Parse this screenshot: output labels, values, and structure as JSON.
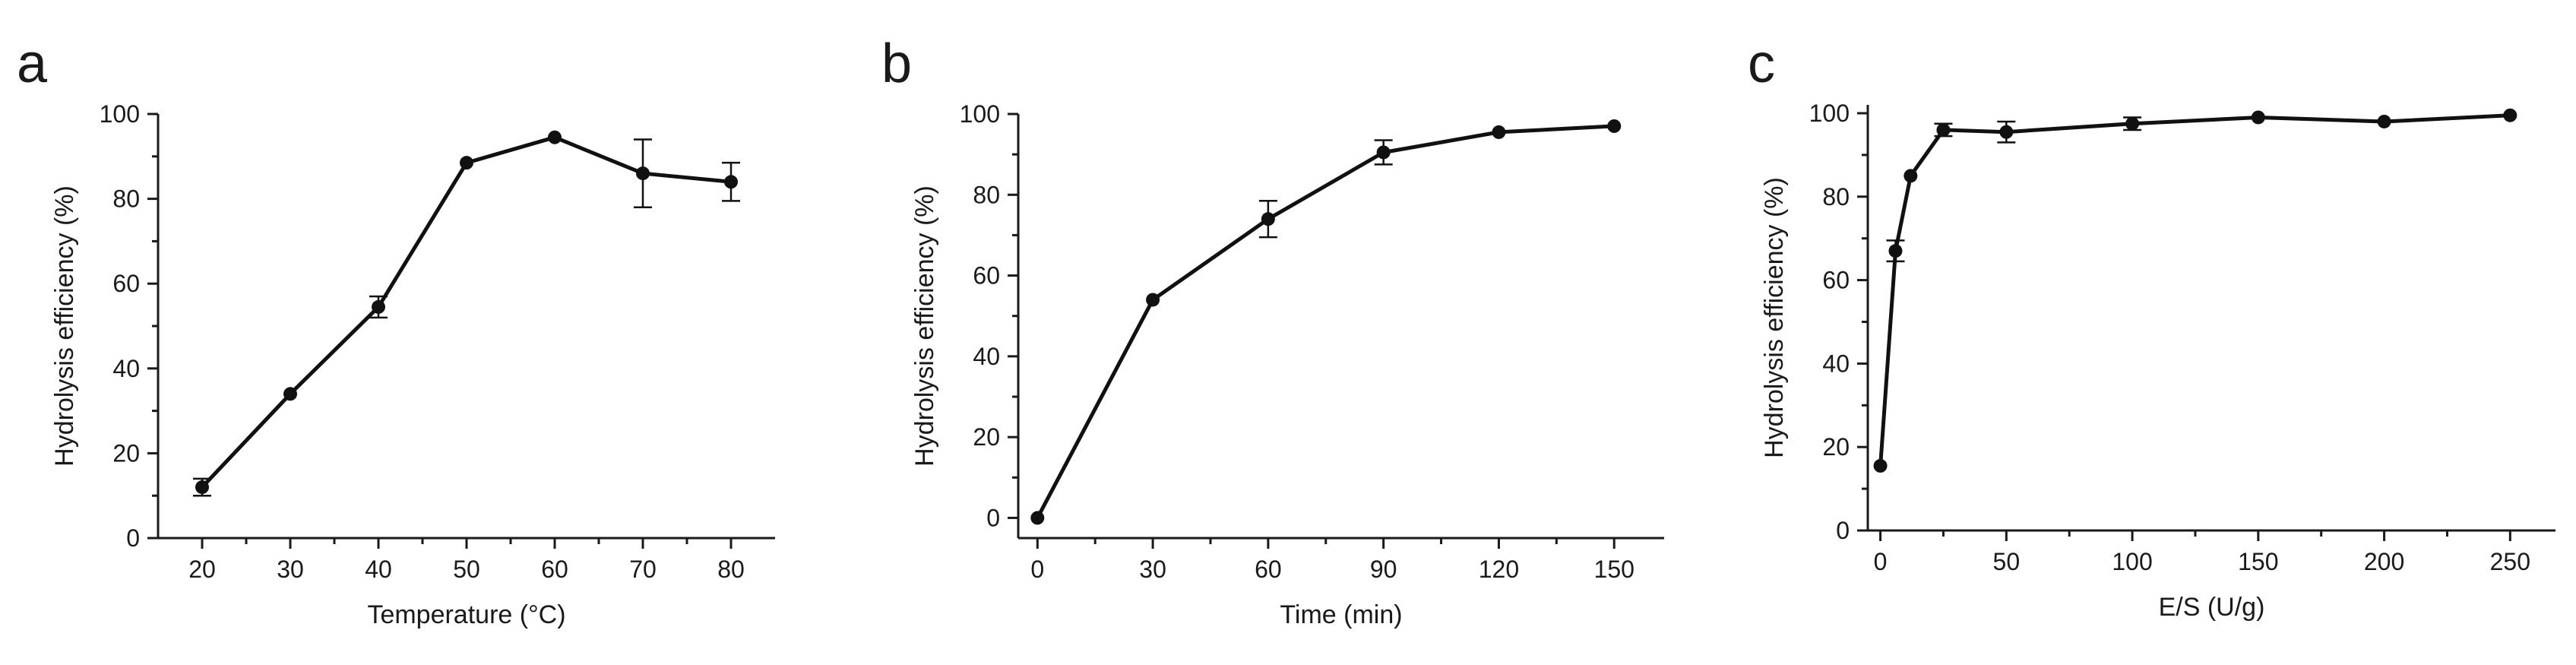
{
  "chart_data": [
    {
      "panel_label": "a",
      "type": "line",
      "xlabel": "Temperature (°C)",
      "ylabel": "Hydrolysis efficiency (%)",
      "xlim": [
        15,
        85
      ],
      "ylim": [
        0,
        100
      ],
      "xticks": [
        20,
        30,
        40,
        50,
        60,
        70,
        80
      ],
      "yticks": [
        0,
        20,
        40,
        60,
        80,
        100
      ],
      "points": [
        {
          "x": 20,
          "y": 12,
          "err": 2
        },
        {
          "x": 30,
          "y": 34,
          "err": 0
        },
        {
          "x": 40,
          "y": 54.5,
          "err": 2.5
        },
        {
          "x": 50,
          "y": 88.5,
          "err": 0
        },
        {
          "x": 60,
          "y": 94.5,
          "err": 0
        },
        {
          "x": 70,
          "y": 86,
          "err": 8
        },
        {
          "x": 80,
          "y": 84,
          "err": 4.5
        }
      ]
    },
    {
      "panel_label": "b",
      "type": "line",
      "xlabel": "Time (min)",
      "ylabel": "Hydrolysis efficiency (%)",
      "xlim": [
        -5,
        163
      ],
      "ylim": [
        -5,
        100
      ],
      "xticks": [
        0,
        30,
        60,
        90,
        120,
        150
      ],
      "yticks": [
        0,
        20,
        40,
        60,
        80,
        100
      ],
      "points": [
        {
          "x": 0,
          "y": 0,
          "err": 0
        },
        {
          "x": 30,
          "y": 54,
          "err": 0
        },
        {
          "x": 60,
          "y": 74,
          "err": 4.5
        },
        {
          "x": 90,
          "y": 90.5,
          "err": 3
        },
        {
          "x": 120,
          "y": 95.5,
          "err": 0
        },
        {
          "x": 150,
          "y": 97,
          "err": 0
        }
      ]
    },
    {
      "panel_label": "c",
      "type": "line",
      "xlabel": "E/S (U/g)",
      "ylabel": "Hydrolysis efficiency (%)",
      "xlim": [
        -5,
        268
      ],
      "ylim": [
        0,
        102
      ],
      "xticks": [
        0,
        50,
        100,
        150,
        200,
        250
      ],
      "yticks": [
        0,
        20,
        40,
        60,
        80,
        100
      ],
      "points": [
        {
          "x": 0,
          "y": 15.5,
          "err": 0
        },
        {
          "x": 6,
          "y": 67,
          "err": 2.5
        },
        {
          "x": 12,
          "y": 85,
          "err": 0
        },
        {
          "x": 25,
          "y": 96,
          "err": 1.5
        },
        {
          "x": 50,
          "y": 95.5,
          "err": 2.5
        },
        {
          "x": 100,
          "y": 97.5,
          "err": 1.5
        },
        {
          "x": 150,
          "y": 99,
          "err": 0
        },
        {
          "x": 200,
          "y": 98,
          "err": 0
        },
        {
          "x": 250,
          "y": 99.5,
          "err": 0
        }
      ]
    }
  ]
}
